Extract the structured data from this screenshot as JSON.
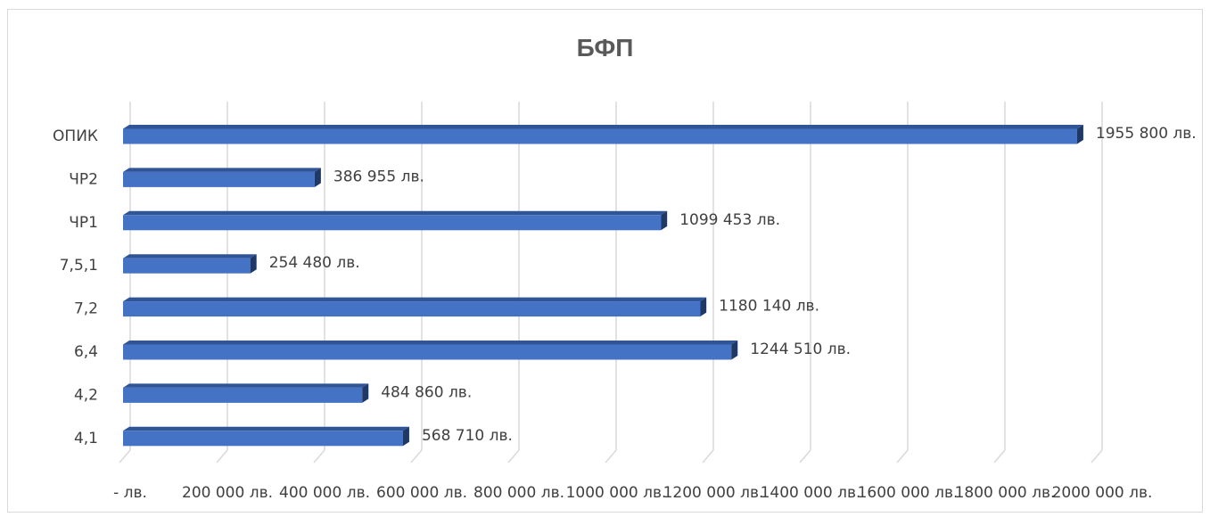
{
  "chart_data": {
    "type": "bar",
    "orientation": "horizontal",
    "title": "БФП",
    "categories": [
      "ОПИК",
      "ЧР2",
      "ЧР1",
      "7,5,1",
      "7,2",
      "6,4",
      "4,2",
      "4,1"
    ],
    "values": [
      1955800,
      386955,
      1099453,
      254480,
      1180140,
      1244510,
      484860,
      568710
    ],
    "data_labels": [
      "1955 800 лв.",
      "386 955 лв.",
      "1099 453 лв.",
      "254 480 лв.",
      "1180 140 лв.",
      "1244 510 лв.",
      "484 860 лв.",
      "568 710 лв."
    ],
    "x_ticks": [
      0,
      200000,
      400000,
      600000,
      800000,
      1000000,
      1200000,
      1400000,
      1600000,
      1800000,
      2000000
    ],
    "x_tick_labels": [
      "- лв.",
      "200 000 лв.",
      "400 000 лв.",
      "600 000 лв.",
      "800 000 лв.",
      "1000 000 лв.",
      "1200 000 лв.",
      "1400 000 лв.",
      "1600 000 лв.",
      "1800 000 лв.",
      "2000 000 лв."
    ],
    "xlim": [
      0,
      2000000
    ],
    "grid": true,
    "legend": "none",
    "colors": {
      "bar_front": "#4472c4",
      "bar_top": "#2f5597",
      "bar_side": "#1f3864",
      "grid": "#d9d9d9",
      "text": "#404040"
    }
  }
}
